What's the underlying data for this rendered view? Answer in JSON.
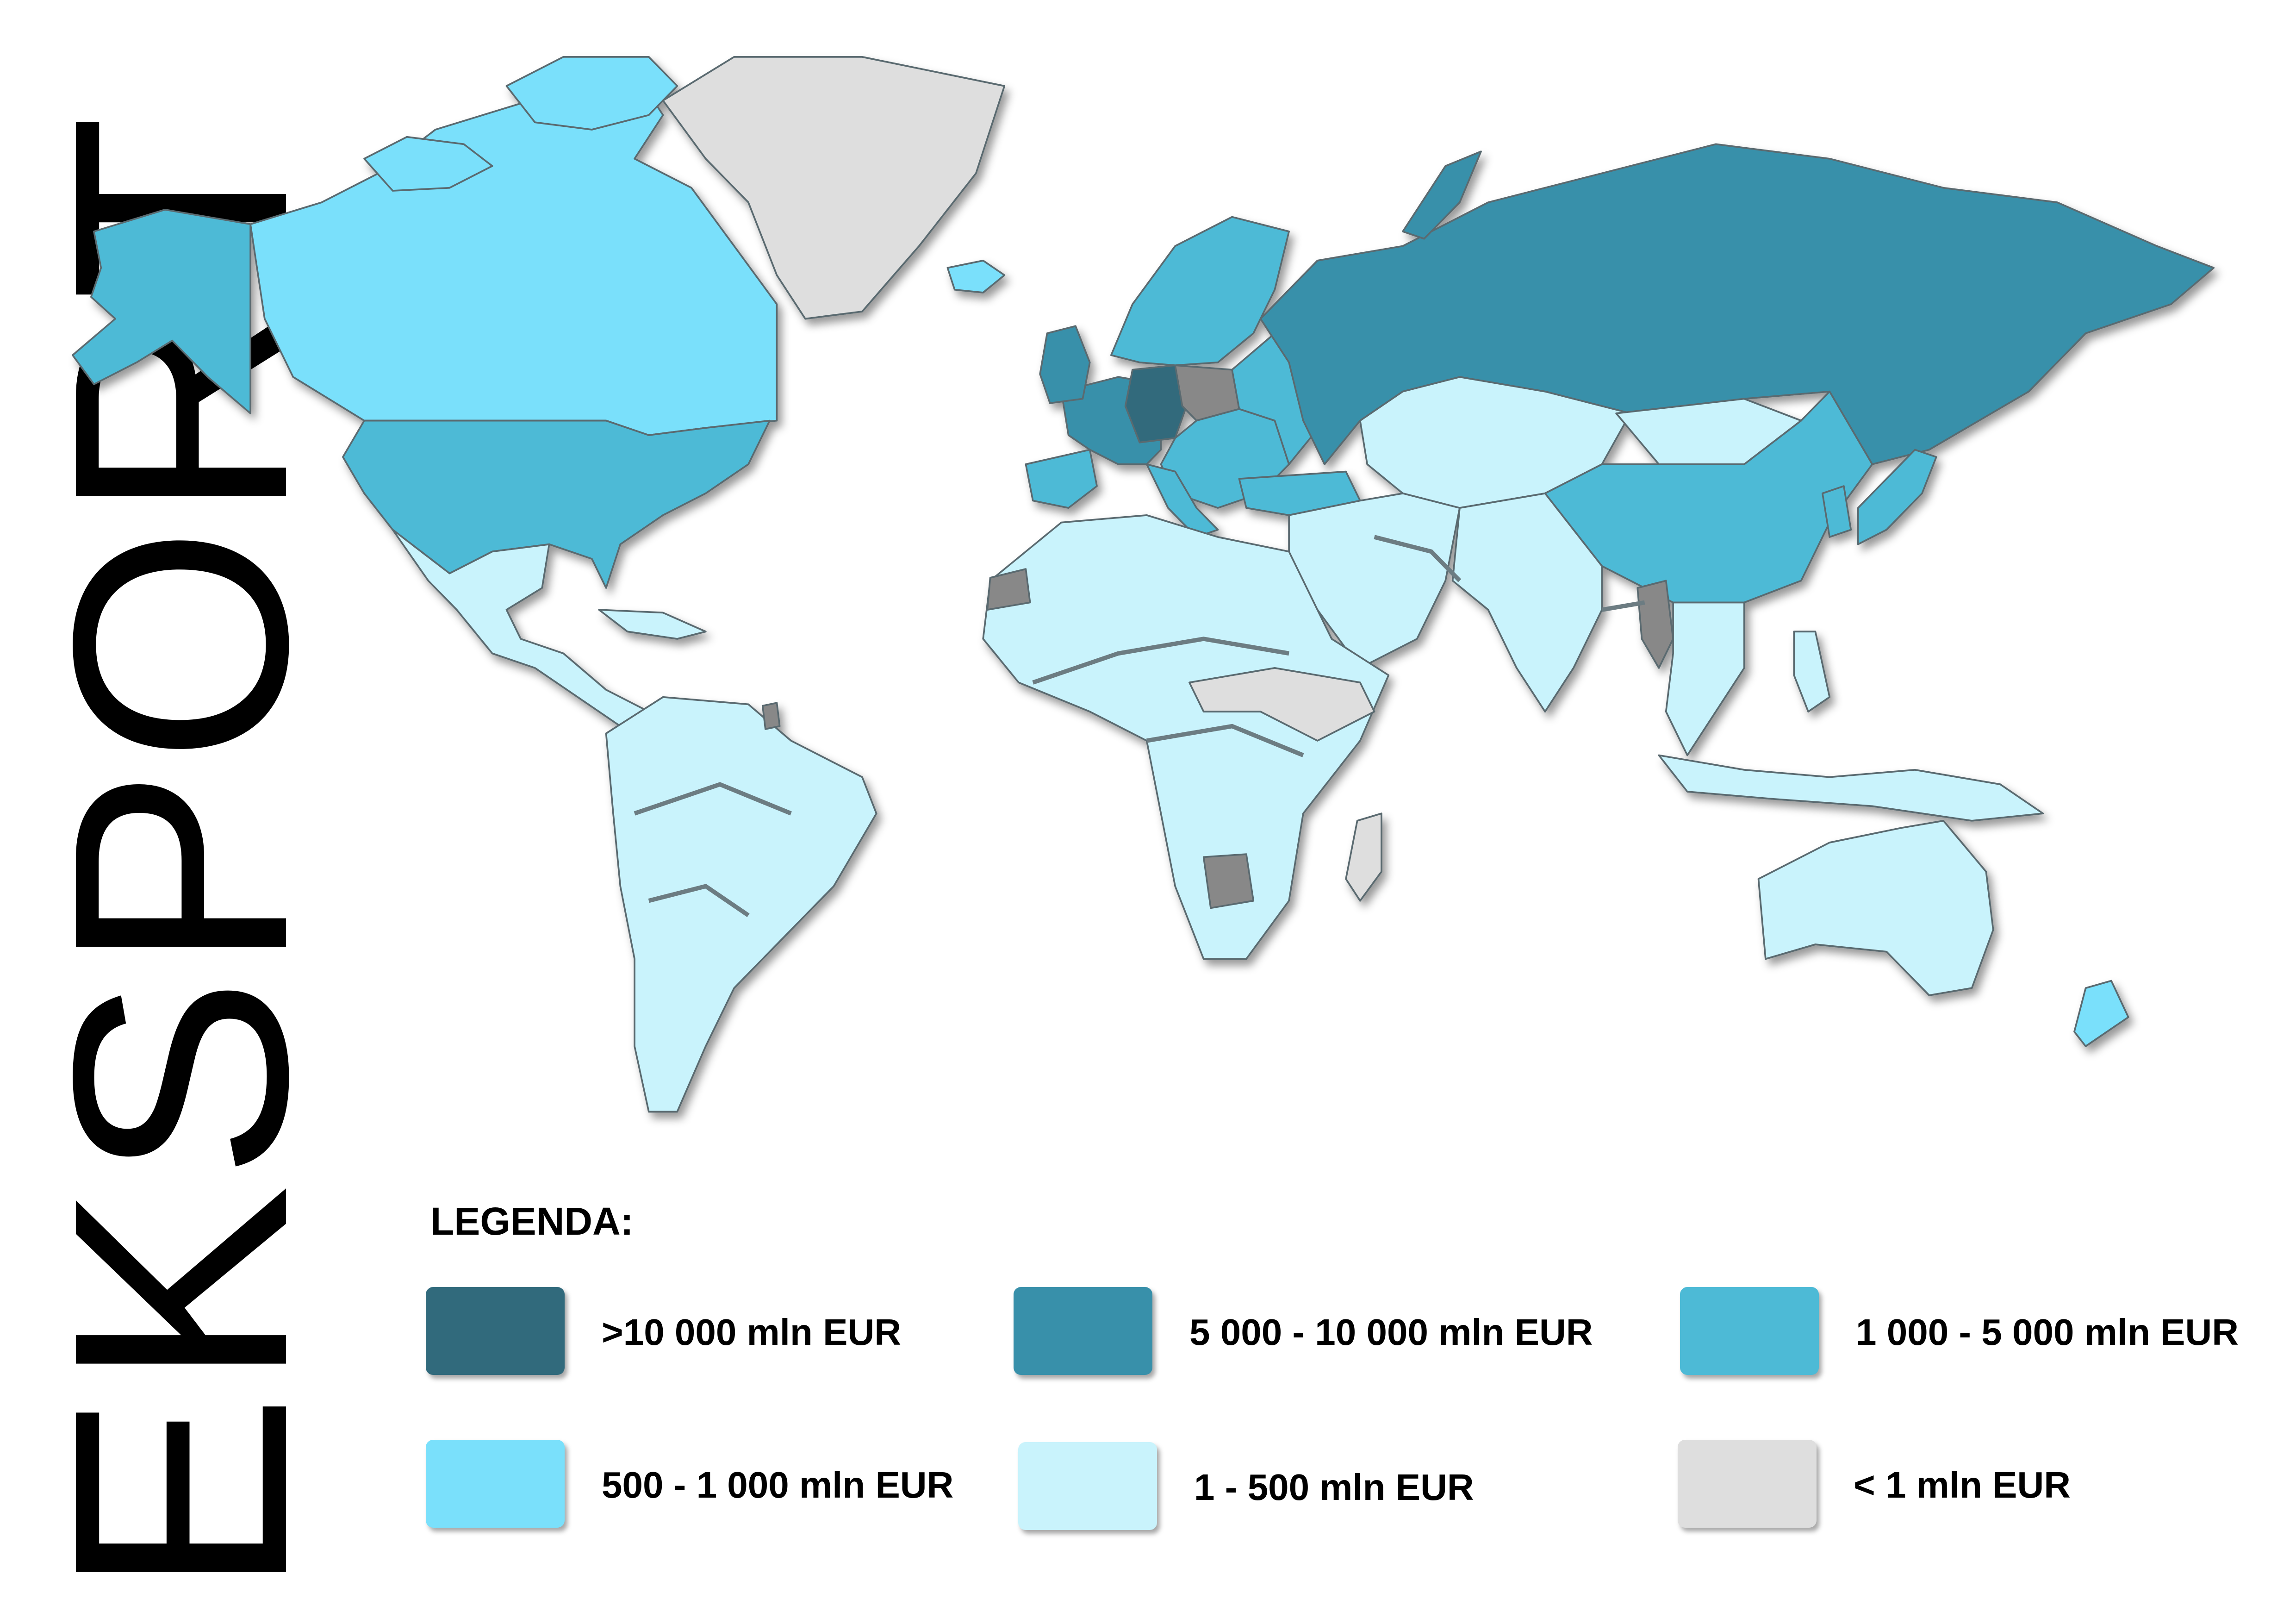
{
  "title": "EKSPORT",
  "legend": {
    "title": "LEGENDA:",
    "items": [
      {
        "label": ">10 000 mln EUR",
        "color": "#316a7c"
      },
      {
        "label": "5 000 - 10 000 mln EUR",
        "color": "#3890aa"
      },
      {
        "label": "1 000 - 5 000 mln EUR",
        "color": "#4dbad6"
      },
      {
        "label": "500 - 1 000 mln EUR",
        "color": "#7ae0fb"
      },
      {
        "label": "1 - 500 mln EUR",
        "color": "#c9f3fc"
      },
      {
        "label": "< 1 mln EUR",
        "color": "#dedede"
      }
    ]
  },
  "map": {
    "regions": [
      {
        "name": "Alaska",
        "class": "1 000 - 5 000 mln EUR"
      },
      {
        "name": "Canada",
        "class": "500 - 1 000 mln EUR"
      },
      {
        "name": "Greenland",
        "class": "< 1 mln EUR"
      },
      {
        "name": "United States",
        "class": "1 000 - 5 000 mln EUR"
      },
      {
        "name": "Central America & Mexico",
        "class": "1 - 500 mln EUR"
      },
      {
        "name": "South America",
        "class": "1 - 500 mln EUR"
      },
      {
        "name": "Western Europe",
        "class": "5 000 - 10 000 mln EUR"
      },
      {
        "name": "Germany",
        "class": ">10 000 mln EUR"
      },
      {
        "name": "Poland",
        "class": "< 1 mln EUR"
      },
      {
        "name": "Scandinavia",
        "class": "1 000 - 5 000 mln EUR"
      },
      {
        "name": "Russia",
        "class": "5 000 - 10 000 mln EUR"
      },
      {
        "name": "China",
        "class": "1 000 - 5 000 mln EUR"
      },
      {
        "name": "Japan",
        "class": "1 000 - 5 000 mln EUR"
      },
      {
        "name": "Africa",
        "class": "1 - 500 mln EUR"
      },
      {
        "name": "Middle East & Central Asia",
        "class": "1 - 500 mln EUR"
      },
      {
        "name": "Southeast Asia",
        "class": "1 - 500 mln EUR"
      },
      {
        "name": "Australia",
        "class": "1 - 500 mln EUR"
      },
      {
        "name": "New Zealand",
        "class": "500 - 1 000 mln EUR"
      }
    ]
  }
}
